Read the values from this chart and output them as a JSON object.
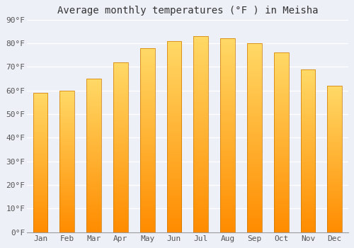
{
  "title": "Average monthly temperatures (°F ) in Meisha",
  "months": [
    "Jan",
    "Feb",
    "Mar",
    "Apr",
    "May",
    "Jun",
    "Jul",
    "Aug",
    "Sep",
    "Oct",
    "Nov",
    "Dec"
  ],
  "values": [
    59,
    60,
    65,
    72,
    78,
    81,
    83,
    82,
    80,
    76,
    69,
    62
  ],
  "bar_color_top": "#FFD966",
  "bar_color_bottom": "#FF8C00",
  "bar_edge_color": "#CC7700",
  "background_color": "#EEF0F8",
  "plot_bg_color": "#EEF0F8",
  "ylim": [
    0,
    90
  ],
  "yticks": [
    0,
    10,
    20,
    30,
    40,
    50,
    60,
    70,
    80,
    90
  ],
  "ytick_labels": [
    "0°F",
    "10°F",
    "20°F",
    "30°F",
    "40°F",
    "50°F",
    "60°F",
    "70°F",
    "80°F",
    "90°F"
  ],
  "title_fontsize": 10,
  "tick_fontsize": 8,
  "grid_color": "#FFFFFF",
  "grid_linewidth": 1.0,
  "font_family": "monospace",
  "bar_width": 0.55
}
